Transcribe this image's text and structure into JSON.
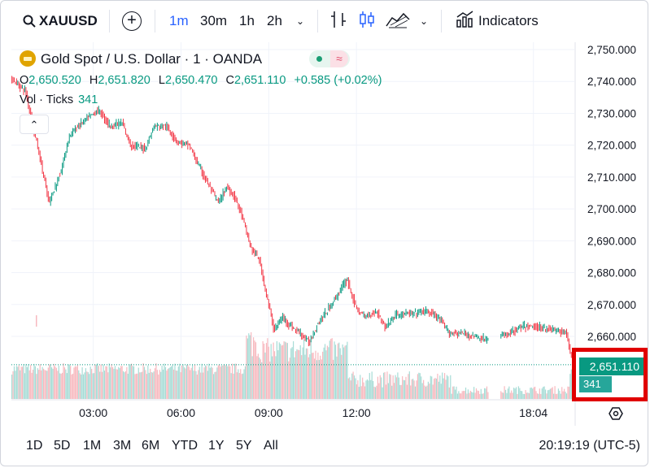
{
  "toolbar": {
    "symbol": "XAUUSD",
    "intervals": [
      {
        "label": "1m",
        "active": true
      },
      {
        "label": "30m",
        "active": false
      },
      {
        "label": "1h",
        "active": false
      },
      {
        "label": "2h",
        "active": false
      }
    ],
    "indicators_label": "Indicators",
    "icons": [
      "search-icon",
      "add-compare-icon",
      "chevron-down-icon",
      "bar-style-icon",
      "candles-style-icon",
      "area-style-icon",
      "chevron-down-icon",
      "indicators-icon"
    ]
  },
  "legend": {
    "title": "Gold Spot / U.S. Dollar · 1 · OANDA",
    "ohlc": {
      "o_key": "O",
      "o": "2,650.520",
      "h_key": "H",
      "h": "2,651.820",
      "l_key": "L",
      "l": "2,650.470",
      "c_key": "C",
      "c": "2,651.110",
      "change": "+0.585 (+0.02%)"
    },
    "volume_label": "Vol · Ticks",
    "volume_value": "341"
  },
  "price_label": "2,651.110",
  "volume_label_badge": "341",
  "bottom": {
    "ranges": [
      "1D",
      "5D",
      "1M",
      "3M",
      "6M",
      "YTD",
      "1Y",
      "5Y",
      "All"
    ],
    "clock": "20:19:19 (UTC-5)"
  },
  "colors": {
    "up": "#089981",
    "down": "#f23645",
    "up_volume": "#a7dcd6",
    "down_volume": "#f7b9bf",
    "accent": "#2962ff",
    "highlight": "#e00000"
  },
  "chart_data": {
    "type": "candlestick",
    "symbol": "XAUUSD",
    "yaxis": {
      "ticks": [
        "2,750.000",
        "2,740.000",
        "2,730.000",
        "2,720.000",
        "2,710.000",
        "2,700.000",
        "2,690.000",
        "2,680.000",
        "2,670.000",
        "2,660.000"
      ],
      "ylim": [
        2645,
        2753
      ]
    },
    "xaxis": {
      "ticks": [
        "03:00",
        "06:00",
        "09:00",
        "12:00",
        "18:04"
      ]
    },
    "last_price": 2651.11,
    "price_path": [
      [
        0,
        2741
      ],
      [
        0.5,
        2737
      ],
      [
        1,
        2716
      ],
      [
        1.3,
        2702
      ],
      [
        1.7,
        2711
      ],
      [
        2.0,
        2723
      ],
      [
        2.3,
        2726
      ],
      [
        2.7,
        2729
      ],
      [
        3.0,
        2731
      ],
      [
        3.4,
        2726
      ],
      [
        3.8,
        2727
      ],
      [
        4.1,
        2720
      ],
      [
        4.6,
        2719
      ],
      [
        4.9,
        2726
      ],
      [
        5.3,
        2726
      ],
      [
        5.7,
        2721
      ],
      [
        6.1,
        2720
      ],
      [
        6.4,
        2714
      ],
      [
        6.8,
        2707
      ],
      [
        7.1,
        2702
      ],
      [
        7.4,
        2707
      ],
      [
        7.7,
        2703
      ],
      [
        7.9,
        2698
      ],
      [
        8.2,
        2688
      ],
      [
        8.5,
        2684
      ],
      [
        8.7,
        2675
      ],
      [
        9.0,
        2662
      ],
      [
        9.3,
        2666
      ],
      [
        9.6,
        2663
      ],
      [
        9.9,
        2661
      ],
      [
        10.2,
        2658
      ],
      [
        10.5,
        2664
      ],
      [
        10.9,
        2669
      ],
      [
        11.3,
        2675
      ],
      [
        11.5,
        2678
      ],
      [
        11.8,
        2669
      ],
      [
        12.1,
        2666
      ],
      [
        12.5,
        2668
      ],
      [
        12.8,
        2663
      ],
      [
        13.2,
        2667
      ],
      [
        13.7,
        2667
      ],
      [
        14.2,
        2668
      ],
      [
        14.6,
        2666
      ],
      [
        15.0,
        2661
      ],
      [
        15.4,
        2661
      ],
      [
        15.9,
        2660
      ],
      [
        16.2,
        2659
      ],
      [
        16.8,
        2660
      ],
      [
        17.5,
        2663
      ],
      [
        17.9,
        2663
      ],
      [
        18.6,
        2662
      ],
      [
        19.0,
        2661
      ],
      [
        19.2,
        2652
      ]
    ],
    "gap": [
      16.3,
      16.7
    ]
  }
}
